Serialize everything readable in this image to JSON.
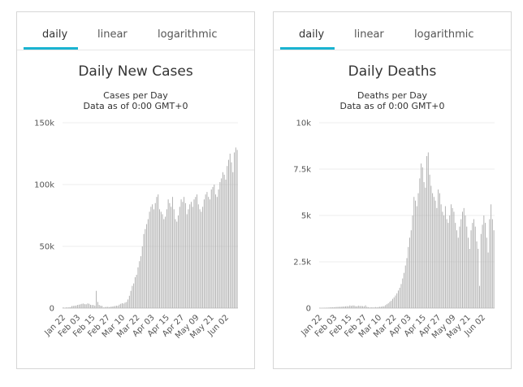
{
  "panels": [
    {
      "tabs": [
        "daily",
        "linear",
        "logarithmic"
      ],
      "active_tab": "daily",
      "accent": "#1ab3d1"
    },
    {
      "tabs": [
        "daily",
        "linear",
        "logarithmic"
      ],
      "active_tab": "daily",
      "accent": "#1ab3d1"
    }
  ],
  "chart_data": [
    {
      "type": "bar",
      "title": "Daily New Cases",
      "subtitle": [
        "Cases per Day",
        "Data as of 0:00 GMT+0"
      ],
      "xlabel": "",
      "ylabel": "",
      "ylim": [
        0,
        150000
      ],
      "y_ticks": [
        0,
        50000,
        100000,
        150000
      ],
      "y_tick_labels": [
        "0",
        "50k",
        "100k",
        "150k"
      ],
      "x_tick_labels": [
        "Jan 22",
        "Feb 03",
        "Feb 15",
        "Feb 27",
        "Mar 10",
        "Mar 22",
        "Apr 03",
        "Apr 15",
        "Apr 27",
        "May 09",
        "May 21",
        "Jun 02"
      ],
      "grid": true,
      "bar_color": "#b0b0b0",
      "categories_start": "Jan 22",
      "values": [
        580,
        100,
        600,
        500,
        700,
        800,
        1700,
        1800,
        2000,
        2100,
        2600,
        2800,
        3100,
        3500,
        3700,
        3200,
        3100,
        3800,
        3500,
        2700,
        2500,
        2500,
        2000,
        14000,
        5000,
        2600,
        2000,
        1800,
        500,
        900,
        1000,
        1100,
        800,
        1100,
        1300,
        1500,
        1700,
        2000,
        1900,
        2800,
        3500,
        4000,
        3700,
        4500,
        5000,
        7000,
        10000,
        14000,
        18000,
        20000,
        25000,
        27000,
        33000,
        38000,
        42000,
        50000,
        60000,
        64000,
        68000,
        72000,
        78000,
        82000,
        84000,
        80000,
        85000,
        90000,
        92000,
        80000,
        78000,
        76000,
        72000,
        74000,
        80000,
        88000,
        85000,
        82000,
        90000,
        80000,
        72000,
        70000,
        75000,
        82000,
        88000,
        86000,
        90000,
        85000,
        76000,
        80000,
        84000,
        86000,
        82000,
        88000,
        90000,
        92000,
        84000,
        80000,
        78000,
        82000,
        88000,
        92000,
        94000,
        90000,
        88000,
        96000,
        98000,
        100000,
        92000,
        90000,
        96000,
        102000,
        105000,
        110000,
        108000,
        104000,
        115000,
        120000,
        125000,
        118000,
        110000,
        126000,
        130000,
        128000
      ],
      "tallest_markers": {
        "feb_spike": 14000,
        "max": 130000
      }
    },
    {
      "type": "bar",
      "title": "Daily Deaths",
      "subtitle": [
        "Deaths per Day",
        "Data as of 0:00 GMT+0"
      ],
      "xlabel": "",
      "ylabel": "",
      "ylim": [
        0,
        10000
      ],
      "y_ticks": [
        0,
        2500,
        5000,
        7500,
        10000
      ],
      "y_tick_labels": [
        "0",
        "2.5k",
        "5k",
        "7.5k",
        "10k"
      ],
      "x_tick_labels": [
        "Jan 22",
        "Feb 03",
        "Feb 15",
        "Feb 27",
        "Mar 10",
        "Mar 22",
        "Apr 03",
        "Apr 15",
        "Apr 27",
        "May 09",
        "May 21",
        "Jun 02"
      ],
      "grid": true,
      "bar_color": "#b0b0b0",
      "categories_start": "Jan 22",
      "values": [
        17,
        1,
        8,
        16,
        14,
        26,
        26,
        38,
        43,
        46,
        45,
        57,
        64,
        66,
        73,
        73,
        86,
        89,
        97,
        108,
        97,
        146,
        121,
        143,
        142,
        105,
        98,
        136,
        114,
        118,
        109,
        97,
        150,
        71,
        52,
        29,
        44,
        37,
        35,
        58,
        40,
        57,
        75,
        77,
        100,
        100,
        160,
        210,
        260,
        340,
        400,
        500,
        580,
        680,
        800,
        950,
        1100,
        1300,
        1600,
        1900,
        2300,
        2700,
        3300,
        3800,
        4200,
        5000,
        6000,
        5800,
        5500,
        6200,
        7000,
        7800,
        7600,
        6800,
        6500,
        8200,
        8400,
        7200,
        6600,
        6200,
        6000,
        5800,
        5400,
        6400,
        6200,
        5600,
        5200,
        5000,
        5500,
        4800,
        4600,
        5000,
        5600,
        5400,
        5200,
        4600,
        4200,
        3800,
        4400,
        4800,
        5200,
        5400,
        5000,
        4400,
        3800,
        3200,
        4200,
        4600,
        4800,
        4400,
        3600,
        3200,
        1200,
        4000,
        4500,
        5000,
        4600,
        3800,
        3000,
        4800,
        5600,
        4800,
        4200
      ]
    }
  ]
}
